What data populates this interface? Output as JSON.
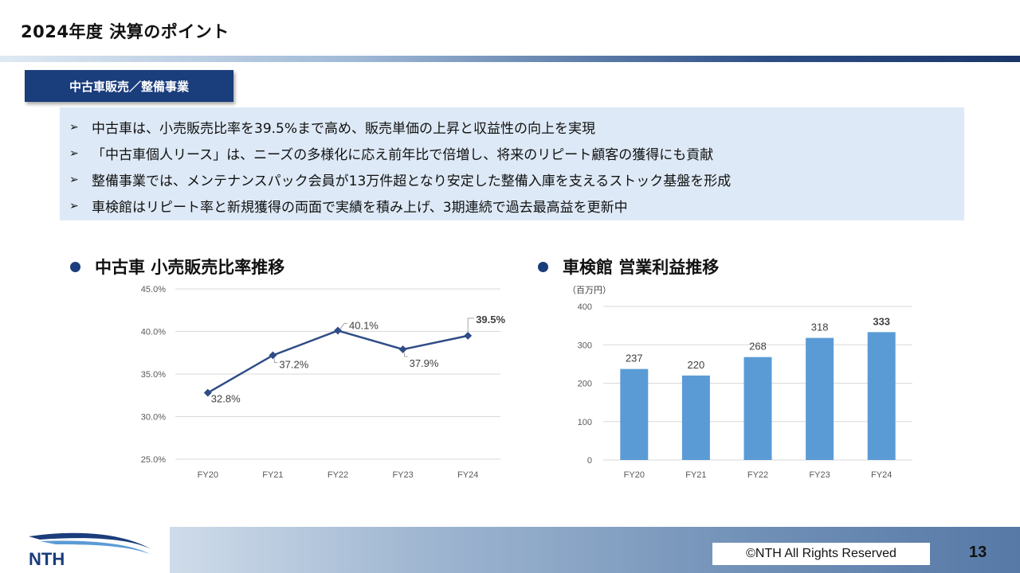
{
  "header": {
    "title": "2024年度 決算のポイント"
  },
  "section_tag": "中古車販売／整備事業",
  "points": [
    "中古車は、小売販売比率を39.5%まで高め、販売単価の上昇と収益性の向上を実現",
    "「中古車個人リース」は、ニーズの多様化に応え前年比で倍増し、将来のリピート顧客の獲得にも貢献",
    "整備事業では、メンテナンスパック会員が13万件超となり安定した整備入庫を支えるストック基盤を形成",
    "車検館はリピート率と新規獲得の両面で実績を積み上げ、3期連続で過去最高益を更新中"
  ],
  "point_marker": "➢",
  "chart_data": [
    {
      "type": "line",
      "title": "中古車 小売販売比率推移",
      "categories": [
        "FY20",
        "FY21",
        "FY22",
        "FY23",
        "FY24"
      ],
      "series": [
        {
          "values": [
            32.8,
            37.2,
            40.1,
            37.9,
            39.5
          ]
        }
      ],
      "data_labels": [
        "32.8%",
        "37.2%",
        "40.1%",
        "37.9%",
        "39.5%"
      ],
      "ylim": [
        25,
        45
      ],
      "yticks": [
        "25.0%",
        "30.0%",
        "35.0%",
        "40.0%",
        "45.0%"
      ],
      "grid": true,
      "color": "#2f4c86"
    },
    {
      "type": "bar",
      "title": "車検館  営業利益推移",
      "unit": "（百万円）",
      "categories": [
        "FY20",
        "FY21",
        "FY22",
        "FY23",
        "FY24"
      ],
      "values": [
        237,
        220,
        268,
        318,
        333
      ],
      "data_labels": [
        "237",
        "220",
        "268",
        "318",
        "333"
      ],
      "ylim": [
        0,
        400
      ],
      "yticks": [
        "0",
        "100",
        "200",
        "300",
        "400"
      ],
      "grid": true,
      "color": "#5b9bd5"
    }
  ],
  "footer": {
    "logo_text": "NTH",
    "copyright": "©NTH All Rights Reserved",
    "page_number": "13"
  }
}
